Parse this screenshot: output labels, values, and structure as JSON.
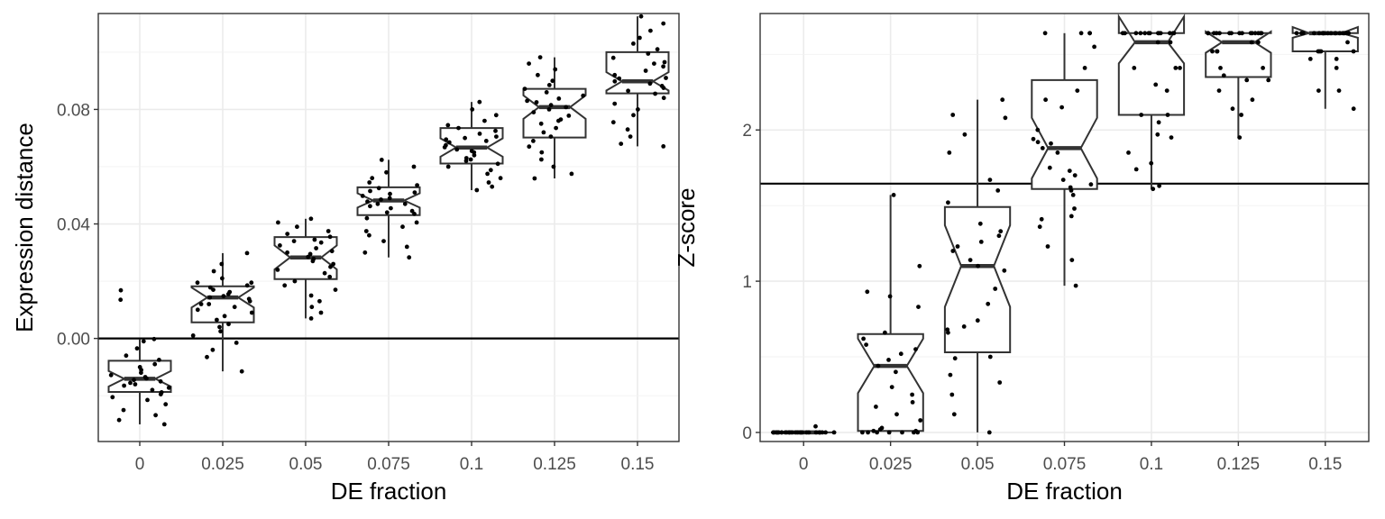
{
  "chart_data": [
    {
      "type": "boxplot",
      "xlabel": "DE fraction",
      "ylabel": "Expression distance",
      "categories": [
        "0",
        "0.025",
        "0.05",
        "0.075",
        "0.1",
        "0.125",
        "0.15"
      ],
      "ylim": [
        -0.036,
        0.1135
      ],
      "yticks": [
        0.0,
        0.04,
        0.08
      ],
      "ytick_labels": [
        "0.00",
        "0.04",
        "0.08"
      ],
      "reference_line": 0.0,
      "grid": true,
      "notched": true,
      "boxes": [
        {
          "category": "0",
          "q1": -0.0187,
          "median": -0.0141,
          "q3": -0.0078,
          "whisker_low": -0.03,
          "whisker_high": -0.0002,
          "notch": [
            -0.0168,
            -0.0114
          ]
        },
        {
          "category": "0.025",
          "q1": 0.0056,
          "median": 0.0143,
          "q3": 0.0182,
          "whisker_low": -0.0115,
          "whisker_high": 0.0298,
          "notch": [
            0.0108,
            0.0178
          ]
        },
        {
          "category": "0.05",
          "q1": 0.0207,
          "median": 0.0283,
          "q3": 0.0354,
          "whisker_low": 0.007,
          "whisker_high": 0.0418,
          "notch": [
            0.0241,
            0.0325
          ]
        },
        {
          "category": "0.075",
          "q1": 0.0431,
          "median": 0.0482,
          "q3": 0.0528,
          "whisker_low": 0.0283,
          "whisker_high": 0.0624,
          "notch": [
            0.0457,
            0.0507
          ]
        },
        {
          "category": "0.1",
          "q1": 0.0611,
          "median": 0.0667,
          "q3": 0.0735,
          "whisker_low": 0.0518,
          "whisker_high": 0.0826,
          "notch": [
            0.0635,
            0.0699
          ]
        },
        {
          "category": "0.125",
          "q1": 0.0702,
          "median": 0.0808,
          "q3": 0.0872,
          "whisker_low": 0.0559,
          "whisker_high": 0.0982,
          "notch": [
            0.0767,
            0.0849
          ]
        },
        {
          "category": "0.15",
          "q1": 0.0856,
          "median": 0.0898,
          "q3": 0.1,
          "whisker_low": 0.0671,
          "whisker_high": 0.1125,
          "notch": [
            0.0866,
            0.093
          ]
        }
      ],
      "points": [
        [
          0.0168,
          -0.0002,
          -0.001,
          -0.0035,
          -0.006,
          -0.0075,
          -0.009,
          -0.01,
          -0.011,
          -0.012,
          -0.0128,
          -0.0135,
          -0.014,
          -0.0145,
          -0.015,
          -0.0155,
          -0.016,
          -0.0165,
          -0.0172,
          -0.018,
          -0.0188,
          -0.0195,
          -0.0205,
          -0.0215,
          -0.023,
          -0.025,
          -0.0268,
          -0.0285,
          -0.03,
          0.0135
        ],
        [
          0.0298,
          0.026,
          0.0235,
          0.021,
          0.0195,
          0.0185,
          0.0178,
          0.017,
          0.0162,
          0.0155,
          0.0148,
          0.0143,
          0.0138,
          0.013,
          0.012,
          0.011,
          0.01,
          0.009,
          0.0078,
          0.0065,
          0.005,
          0.004,
          0.0025,
          0.001,
          -0.0015,
          -0.004,
          -0.0065,
          -0.0115,
          0.0195,
          0.012
        ],
        [
          0.0418,
          0.0405,
          0.039,
          0.0375,
          0.0365,
          0.0355,
          0.0345,
          0.0335,
          0.0325,
          0.0315,
          0.0305,
          0.0295,
          0.0285,
          0.0278,
          0.027,
          0.026,
          0.025,
          0.024,
          0.0228,
          0.0215,
          0.02,
          0.0185,
          0.017,
          0.015,
          0.013,
          0.011,
          0.009,
          0.007,
          0.034,
          0.03
        ],
        [
          0.0624,
          0.06,
          0.058,
          0.056,
          0.0545,
          0.0535,
          0.0525,
          0.0515,
          0.0505,
          0.0498,
          0.049,
          0.0485,
          0.0478,
          0.047,
          0.0462,
          0.0455,
          0.0445,
          0.0435,
          0.042,
          0.0405,
          0.039,
          0.0375,
          0.036,
          0.034,
          0.032,
          0.03,
          0.0283,
          0.051,
          0.047,
          0.044
        ],
        [
          0.0826,
          0.08,
          0.078,
          0.076,
          0.0745,
          0.0735,
          0.0725,
          0.0715,
          0.0705,
          0.0695,
          0.0685,
          0.0675,
          0.0668,
          0.066,
          0.065,
          0.064,
          0.063,
          0.062,
          0.061,
          0.06,
          0.0588,
          0.0575,
          0.056,
          0.0545,
          0.053,
          0.0518,
          0.07,
          0.0655,
          0.0625,
          0.069
        ],
        [
          0.0982,
          0.096,
          0.094,
          0.092,
          0.09,
          0.0885,
          0.0872,
          0.086,
          0.0848,
          0.0838,
          0.0825,
          0.0815,
          0.0808,
          0.08,
          0.079,
          0.0778,
          0.0765,
          0.075,
          0.0735,
          0.072,
          0.0705,
          0.069,
          0.067,
          0.065,
          0.0625,
          0.06,
          0.0575,
          0.0559,
          0.083,
          0.076
        ],
        [
          0.1125,
          0.11,
          0.1075,
          0.105,
          0.103,
          0.101,
          0.0995,
          0.098,
          0.0965,
          0.095,
          0.0935,
          0.092,
          0.0908,
          0.0898,
          0.089,
          0.0882,
          0.0875,
          0.0865,
          0.0855,
          0.084,
          0.082,
          0.08,
          0.078,
          0.0755,
          0.073,
          0.0705,
          0.068,
          0.0671,
          0.096,
          0.091
        ]
      ]
    },
    {
      "type": "boxplot",
      "xlabel": "DE fraction",
      "ylabel": "Z-score",
      "categories": [
        "0",
        "0.025",
        "0.05",
        "0.075",
        "0.1",
        "0.125",
        "0.15"
      ],
      "ylim": [
        -0.06,
        2.77
      ],
      "yticks": [
        0,
        1,
        2
      ],
      "ytick_labels": [
        "0",
        "1",
        "2"
      ],
      "reference_line": 1.645,
      "grid": true,
      "notched": true,
      "boxes": [
        {
          "category": "0",
          "q1": 0.0,
          "median": 0.0,
          "q3": 0.0,
          "whisker_low": 0.0,
          "whisker_high": 0.0,
          "notch": [
            0.0,
            0.0
          ]
        },
        {
          "category": "0.025",
          "q1": 0.01,
          "median": 0.44,
          "q3": 0.65,
          "whisker_low": 0.0,
          "whisker_high": 1.57,
          "notch": [
            0.26,
            0.62
          ]
        },
        {
          "category": "0.05",
          "q1": 0.53,
          "median": 1.1,
          "q3": 1.49,
          "whisker_low": 0.0,
          "whisker_high": 2.2,
          "notch": [
            0.83,
            1.37
          ]
        },
        {
          "category": "0.075",
          "q1": 1.61,
          "median": 1.88,
          "q3": 2.33,
          "whisker_low": 0.97,
          "whisker_high": 2.64,
          "notch": [
            1.68,
            2.08
          ]
        },
        {
          "category": "0.1",
          "q1": 2.1,
          "median": 2.58,
          "q3": 2.64,
          "whisker_low": 1.61,
          "whisker_high": 2.64,
          "notch": [
            2.44,
            2.75
          ]
        },
        {
          "category": "0.125",
          "q1": 2.35,
          "median": 2.58,
          "q3": 2.64,
          "whisker_low": 1.95,
          "whisker_high": 2.64,
          "notch": [
            2.51,
            2.65
          ]
        },
        {
          "category": "0.15",
          "q1": 2.52,
          "median": 2.64,
          "q3": 2.64,
          "whisker_low": 2.14,
          "whisker_high": 2.64,
          "notch": [
            2.61,
            2.68
          ]
        }
      ],
      "points": [
        [
          0.0,
          0.0,
          0.0,
          0.0,
          0.0,
          0.0,
          0.0,
          0.0,
          0.0,
          0.0,
          0.0,
          0.0,
          0.0,
          0.0,
          0.0,
          0.0,
          0.0,
          0.0,
          0.0,
          0.0,
          0.0,
          0.0,
          0.0,
          0.0,
          0.0,
          0.0,
          0.0,
          0.0,
          0.0,
          0.04
        ],
        [
          1.57,
          1.1,
          0.93,
          0.9,
          0.83,
          0.66,
          0.62,
          0.58,
          0.55,
          0.52,
          0.48,
          0.44,
          0.4,
          0.3,
          0.25,
          0.2,
          0.17,
          0.12,
          0.08,
          0.03,
          0.02,
          0.01,
          0.01,
          0.0,
          0.0,
          0.0,
          0.0,
          0.0,
          0.0,
          0.0
        ],
        [
          2.2,
          2.1,
          2.08,
          1.97,
          1.85,
          1.67,
          1.6,
          1.52,
          1.38,
          1.3,
          1.26,
          1.2,
          1.14,
          1.1,
          1.07,
          0.85,
          0.74,
          0.7,
          0.68,
          0.66,
          0.5,
          0.49,
          0.38,
          0.33,
          0.25,
          0.12,
          0.0,
          1.33,
          1.23,
          0.95
        ],
        [
          2.64,
          2.64,
          2.64,
          2.64,
          2.55,
          2.41,
          2.26,
          2.2,
          2.15,
          2.0,
          1.94,
          1.92,
          1.91,
          1.88,
          1.85,
          1.75,
          1.73,
          1.67,
          1.64,
          1.62,
          1.6,
          1.57,
          1.48,
          1.43,
          1.41,
          1.36,
          1.23,
          1.14,
          0.97,
          1.7
        ],
        [
          2.64,
          2.64,
          2.64,
          2.64,
          2.64,
          2.64,
          2.64,
          2.64,
          2.64,
          2.64,
          2.64,
          2.64,
          2.64,
          2.58,
          2.58,
          2.41,
          2.41,
          2.41,
          2.26,
          2.1,
          2.1,
          2.05,
          1.97,
          1.95,
          1.85,
          1.78,
          1.74,
          1.63,
          1.61,
          2.3
        ],
        [
          2.64,
          2.64,
          2.64,
          2.64,
          2.64,
          2.64,
          2.64,
          2.64,
          2.64,
          2.64,
          2.64,
          2.64,
          2.64,
          2.64,
          2.64,
          2.58,
          2.58,
          2.52,
          2.52,
          2.52,
          2.41,
          2.41,
          2.36,
          2.33,
          2.33,
          2.26,
          2.2,
          2.14,
          2.1,
          1.95
        ],
        [
          2.64,
          2.64,
          2.64,
          2.64,
          2.64,
          2.64,
          2.64,
          2.64,
          2.64,
          2.64,
          2.64,
          2.64,
          2.64,
          2.64,
          2.64,
          2.64,
          2.64,
          2.64,
          2.58,
          2.52,
          2.52,
          2.52,
          2.52,
          2.47,
          2.47,
          2.41,
          2.26,
          2.26,
          2.14,
          2.64
        ]
      ]
    }
  ]
}
